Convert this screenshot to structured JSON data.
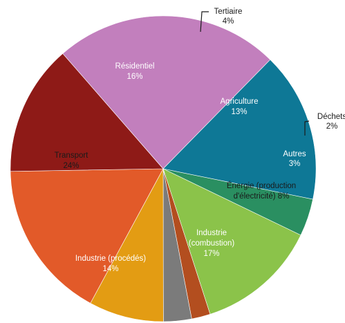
{
  "chart_data": {
    "type": "pie",
    "title": "",
    "slices": [
      {
        "label": "Tertiaire",
        "display": [
          "Tertiaire",
          "4%"
        ],
        "value": 4,
        "color": "#2a8f61",
        "label_place": "outside-callout"
      },
      {
        "label": "Agriculture",
        "display": [
          "Agriculture",
          "13%"
        ],
        "value": 13,
        "color": "#8bc34a",
        "label_place": "inside"
      },
      {
        "label": "Déchets",
        "display": [
          "Déchets",
          "2%"
        ],
        "value": 2,
        "color": "#b34e1f",
        "label_place": "outside-callout"
      },
      {
        "label": "Autres",
        "display": [
          "Autres",
          "3%"
        ],
        "value": 3,
        "color": "#7b7b7b",
        "label_place": "inside"
      },
      {
        "label": "Énergie (production d'électricité)",
        "display": [
          "Énergie (production",
          "d'électricité) 8%"
        ],
        "value": 8,
        "color": "#e39c13",
        "label_place": "inside"
      },
      {
        "label": "Industrie (combustion)",
        "display": [
          "Industrie",
          "(combustion)",
          "17%"
        ],
        "value": 17,
        "color": "#e25a29",
        "label_place": "inside"
      },
      {
        "label": "Industrie (procédés)",
        "display": [
          "Industrie (procédés)",
          "14%"
        ],
        "value": 14,
        "color": "#8e1a17",
        "label_place": "inside"
      },
      {
        "label": "Transport",
        "display": [
          "Transport",
          "24%"
        ],
        "value": 24,
        "color": "#c27fbd",
        "label_place": "inside"
      },
      {
        "label": "Résidentiel",
        "display": [
          "Résidentiel",
          "16%"
        ],
        "value": 16,
        "color": "#0e7896",
        "label_place": "inside"
      }
    ],
    "legend": "none"
  }
}
